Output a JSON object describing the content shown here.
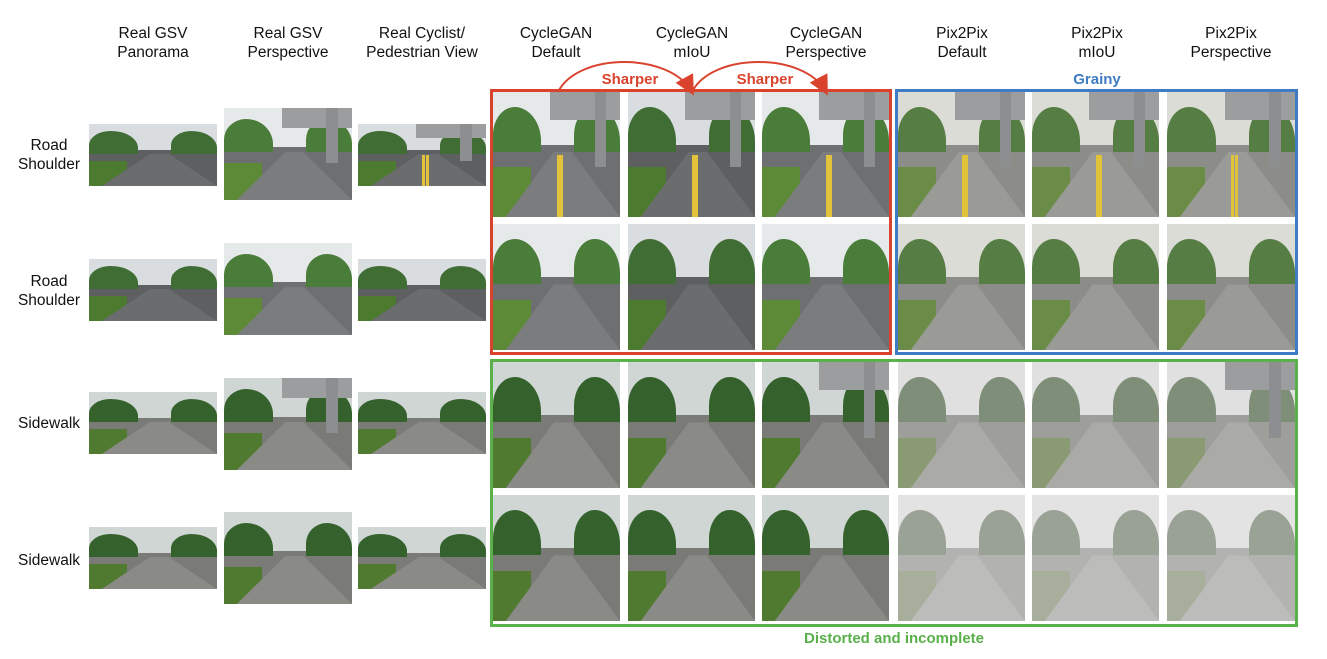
{
  "columns": [
    {
      "line1": "Real GSV",
      "line2": "Panorama"
    },
    {
      "line1": "Real GSV",
      "line2": "Perspective"
    },
    {
      "line1": "Real Cyclist/",
      "line2": "Pedestrian View"
    },
    {
      "line1": "CycleGAN",
      "line2": "Default"
    },
    {
      "line1": "CycleGAN",
      "line2": "mIoU"
    },
    {
      "line1": "CycleGAN",
      "line2": "Perspective"
    },
    {
      "line1": "Pix2Pix",
      "line2": "Default"
    },
    {
      "line1": "Pix2Pix",
      "line2": "mIoU"
    },
    {
      "line1": "Pix2Pix",
      "line2": "Perspective"
    }
  ],
  "rows": [
    {
      "line1": "Road",
      "line2": "Shoulder"
    },
    {
      "line1": "Road",
      "line2": "Shoulder"
    },
    {
      "line1": "Sidewalk",
      "line2": ""
    },
    {
      "line1": "Sidewalk",
      "line2": ""
    }
  ],
  "annotations": {
    "sharper_1": "Sharper",
    "sharper_2": "Sharper",
    "grainy": "Grainy",
    "distorted": "Distorted and incomplete"
  },
  "colors": {
    "red_box": "#d9432e",
    "blue_box": "#3f7cc4",
    "green_box": "#5ab04a"
  }
}
